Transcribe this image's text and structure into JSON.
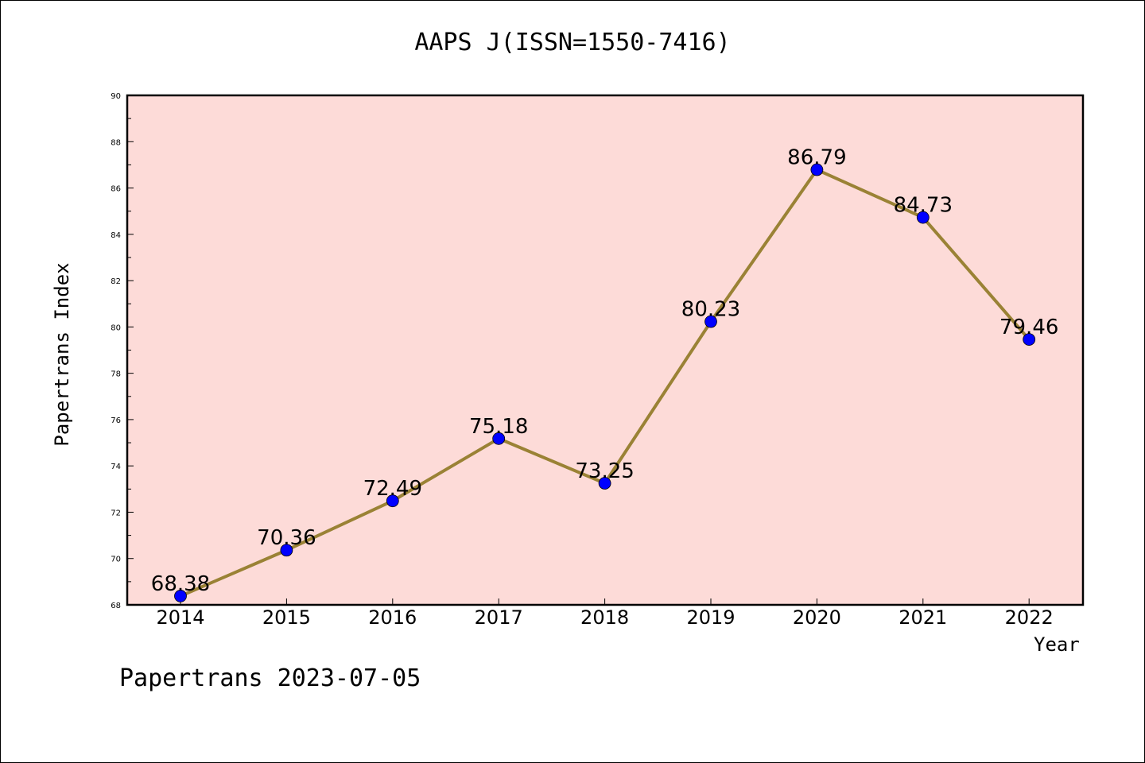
{
  "chart_data": {
    "type": "line",
    "title": "AAPS J(ISSN=1550-7416)",
    "xlabel": "Year",
    "ylabel": "Papertrans Index",
    "footer": "Papertrans 2023-07-05",
    "categories": [
      "2014",
      "2015",
      "2016",
      "2017",
      "2018",
      "2019",
      "2020",
      "2021",
      "2022"
    ],
    "series": [
      {
        "values": [
          68.38,
          70.36,
          72.49,
          75.18,
          73.25,
          80.23,
          86.79,
          84.73,
          79.46
        ]
      }
    ],
    "data_labels": [
      "68.38",
      "70.36",
      "72.49",
      "75.18",
      "73.25",
      "80.23",
      "86.79",
      "84.73",
      "79.46"
    ],
    "ylim": [
      68,
      90
    ],
    "yticks": [
      "68",
      "70",
      "72",
      "74",
      "76",
      "78",
      "80",
      "82",
      "84",
      "86",
      "88",
      "90"
    ],
    "grid": false,
    "colors": {
      "plot_background": "#fddbd8",
      "line": "#9a8235",
      "marker": "#0000ff"
    }
  }
}
